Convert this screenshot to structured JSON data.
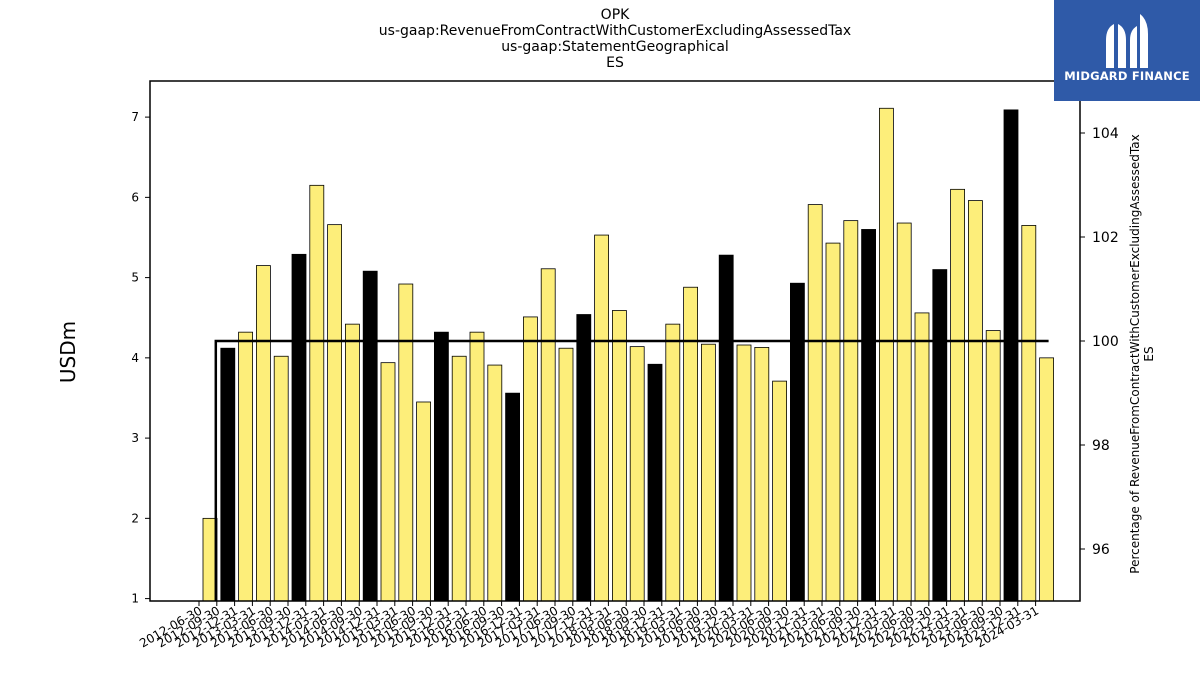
{
  "chart_data": {
    "type": "bar",
    "title_lines": [
      "OPK",
      "us-gaap:RevenueFromContractWithCustomerExcludingAssessedTax",
      "us-gaap:StatementGeographical",
      "ES"
    ],
    "ylabel": "USDm",
    "ylabel_right": [
      "Percentage of RevenueFromContractWithCustomerExcludingAssessedTax",
      "ES"
    ],
    "ylim": [
      0.97,
      7.45
    ],
    "ylim_right": [
      95,
      105
    ],
    "yticks": [
      1,
      2,
      3,
      4,
      5,
      6,
      7
    ],
    "yticks_right": [
      96,
      98,
      100,
      102,
      104
    ],
    "categories": [
      "2012-06-30",
      "2012-09-30",
      "2012-12-31",
      "2013-03-31",
      "2013-06-30",
      "2013-09-30",
      "2013-12-31",
      "2014-03-31",
      "2014-06-30",
      "2014-09-30",
      "2014-12-31",
      "2015-03-31",
      "2015-06-30",
      "2015-09-30",
      "2015-12-31",
      "2016-03-31",
      "2016-06-30",
      "2016-09-30",
      "2016-12-31",
      "2017-03-31",
      "2017-06-30",
      "2017-09-30",
      "2017-12-31",
      "2018-03-31",
      "2018-06-30",
      "2018-09-30",
      "2018-12-31",
      "2019-03-31",
      "2019-06-30",
      "2019-09-30",
      "2019-12-31",
      "2020-03-31",
      "2020-06-30",
      "2020-09-30",
      "2020-12-31",
      "2021-03-31",
      "2021-06-30",
      "2021-09-30",
      "2021-12-31",
      "2022-03-31",
      "2022-06-30",
      "2022-09-30",
      "2022-12-31",
      "2023-03-31",
      "2023-06-30",
      "2023-09-30",
      "2023-12-31",
      "2024-03-31"
    ],
    "xtick_labels": [
      "2012-06-30",
      "2012-09-30",
      "2012-12-31",
      "2013-03-31",
      "2013-06-30",
      "2013-09-30",
      "2013-12-31",
      "2014-03-31",
      "2014-06-30",
      "2014-09-30",
      "2014-12-31",
      "2015-03-31",
      "2015-06-30",
      "2015-09-30",
      "2015-12-31",
      "2016-03-31",
      "2016-06-30",
      "2016-09-30",
      "2016-12-31",
      "2017-03-31",
      "2017-06-30",
      "2017-09-30",
      "2017-12-31",
      "2018-03-31",
      "2018-06-30",
      "2018-09-30",
      "2018-12-31",
      "2019-03-31",
      "2019-06-30",
      "2019-09-30",
      "2019-12-31",
      "2020-03-31",
      "2020-06-30",
      "2020-09-30",
      "2020-12-31",
      "2021-03-31",
      "2021-06-30",
      "2021-09-30",
      "2021-12-31",
      "2022-03-31",
      "2022-06-30",
      "2022-09-30",
      "2022-12-31",
      "2023-03-31",
      "2023-06-30",
      "2023-09-30",
      "2023-12-31",
      "2024-03-31"
    ],
    "series": [
      {
        "values": [
          2.0,
          4.12,
          4.32,
          5.15,
          4.02,
          5.29,
          6.15,
          5.66,
          4.42,
          5.08,
          3.94,
          4.92,
          3.45,
          4.32,
          4.02,
          4.32,
          3.91,
          3.56,
          4.51,
          5.11,
          4.12,
          4.54,
          5.53,
          4.59,
          4.14,
          3.92,
          4.42,
          4.88,
          4.17,
          5.28,
          4.16,
          4.13,
          3.71,
          4.93,
          5.91,
          5.43,
          5.71,
          5.6,
          7.11,
          5.68,
          4.56,
          5.1,
          6.1,
          5.96,
          4.34,
          7.09,
          5.65,
          4.0
        ],
        "bar_colors": [
          "#fdee7a",
          "#000000",
          "#fdee7a",
          "#fdee7a",
          "#fdee7a",
          "#000000",
          "#fdee7a",
          "#fdee7a",
          "#fdee7a",
          "#000000",
          "#fdee7a",
          "#fdee7a",
          "#fdee7a",
          "#000000",
          "#fdee7a",
          "#fdee7a",
          "#fdee7a",
          "#000000",
          "#fdee7a",
          "#fdee7a",
          "#fdee7a",
          "#000000",
          "#fdee7a",
          "#fdee7a",
          "#fdee7a",
          "#000000",
          "#fdee7a",
          "#fdee7a",
          "#fdee7a",
          "#000000",
          "#fdee7a",
          "#fdee7a",
          "#fdee7a",
          "#000000",
          "#fdee7a",
          "#fdee7a",
          "#fdee7a",
          "#000000",
          "#fdee7a",
          "#fdee7a",
          "#fdee7a",
          "#000000",
          "#fdee7a",
          "#fdee7a",
          "#fdee7a",
          "#000000",
          "#fdee7a",
          "#fdee7a"
        ]
      }
    ],
    "percentage_line": {
      "axis": "right",
      "color": "#000000",
      "values": [
        100,
        100
      ]
    },
    "grid": false,
    "legend": "none"
  },
  "logo": {
    "text": "MIDGARD FINANCE",
    "background": "#2f5aa8"
  }
}
